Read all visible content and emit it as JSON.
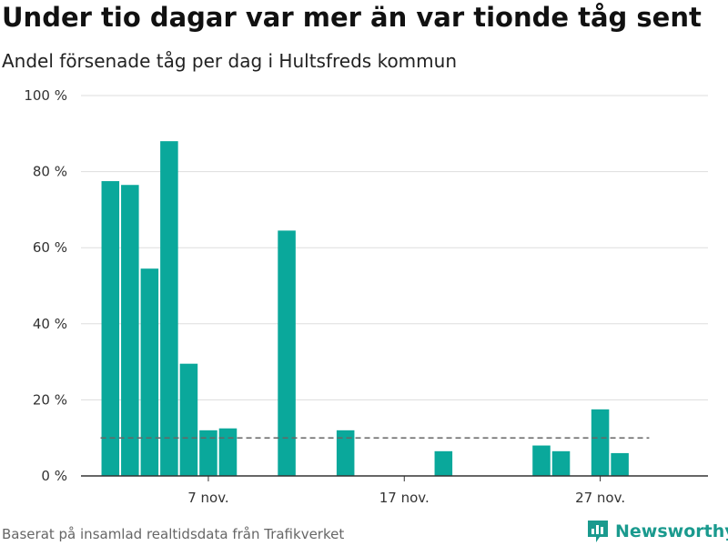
{
  "header": {
    "title": "Under tio dagar var mer än var tionde tåg sent",
    "subtitle": "Andel försenade tåg per dag i Hultsfreds kommun"
  },
  "footer": {
    "source": "Baserat på insamlad realtidsdata från Trafikverket",
    "brand": "Newsworthy"
  },
  "colors": {
    "bar": "#0aa89b",
    "reference_line": "#666666",
    "grid": "#dddddd",
    "axis": "#333333",
    "brand": "#1a9a8e"
  },
  "chart_data": {
    "type": "bar",
    "title": "Under tio dagar var mer än var tionde tåg sent",
    "subtitle": "Andel försenade tåg per dag i Hultsfreds kommun",
    "x_unit": "day of November",
    "x_range": [
      0.5,
      32.5
    ],
    "x_ticks": [
      {
        "x": 7,
        "label": "7 nov."
      },
      {
        "x": 17,
        "label": "17 nov."
      },
      {
        "x": 27,
        "label": "27 nov."
      }
    ],
    "ylim": [
      0,
      100
    ],
    "y_ticks": [
      0,
      20,
      40,
      60,
      80,
      100
    ],
    "y_tick_labels": [
      "0 %",
      "20 %",
      "40 %",
      "60 %",
      "80 %",
      "100 %"
    ],
    "grid": true,
    "reference_line": {
      "y": 10,
      "x_from": 2,
      "x_to": 29,
      "style": "dashed"
    },
    "x": [
      2,
      3,
      4,
      5,
      6,
      7,
      8,
      11,
      14,
      19,
      24,
      25,
      27,
      28
    ],
    "values": [
      77.5,
      76.5,
      54.5,
      88,
      29.5,
      12,
      12.5,
      64.5,
      12,
      6.5,
      8,
      6.5,
      17.5,
      6
    ]
  }
}
